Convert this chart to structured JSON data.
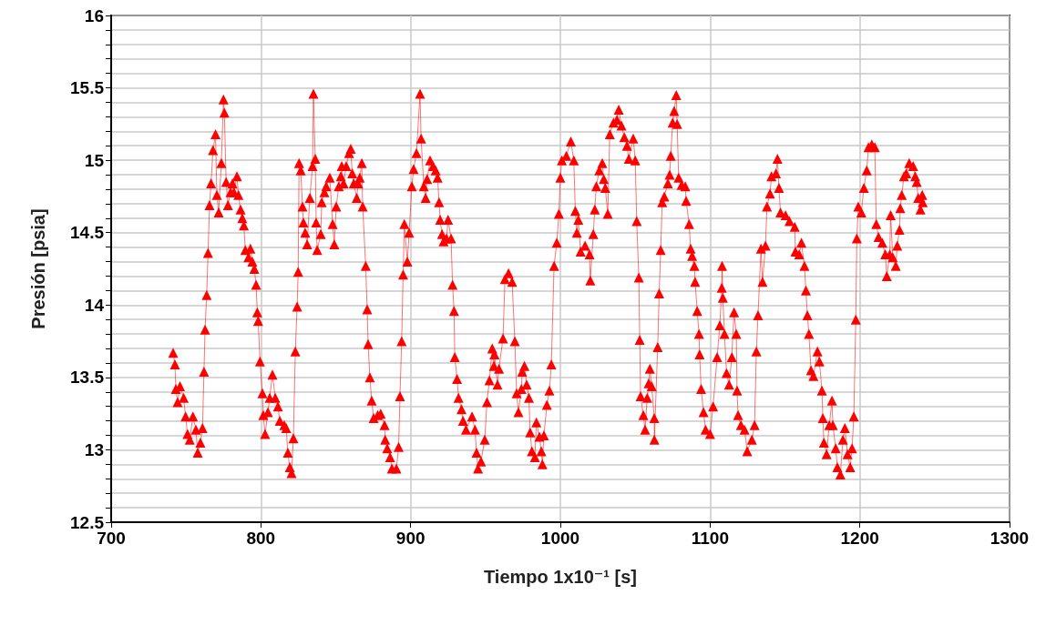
{
  "chart_data": {
    "type": "line",
    "xlabel": "Tiempo 1x10⁻¹ [s]",
    "ylabel": "Presión [psia]",
    "xlim": [
      700,
      1300
    ],
    "xticks": [
      700,
      800,
      900,
      1000,
      1100,
      1200,
      1300
    ],
    "ylim": [
      12.5,
      16
    ],
    "yticks": [
      12.5,
      {
        "value": 12.6,
        "label": null
      },
      {
        "value": 12.7,
        "label": null
      },
      {
        "value": 12.8,
        "label": null
      },
      {
        "value": 12.9,
        "label": null
      },
      13,
      {
        "value": 13.1,
        "label": null
      },
      {
        "value": 13.2,
        "label": null
      },
      {
        "value": 13.3,
        "label": null
      },
      {
        "value": 13.4,
        "label": null
      },
      13.5,
      {
        "value": 13.6,
        "label": null
      },
      {
        "value": 13.7,
        "label": null
      },
      {
        "value": 13.8,
        "label": null
      },
      {
        "value": 13.9,
        "label": null
      },
      14,
      {
        "value": 14.1,
        "label": null
      },
      {
        "value": 14.2,
        "label": null
      },
      {
        "value": 14.3,
        "label": null
      },
      {
        "value": 14.4,
        "label": null
      },
      14.5,
      {
        "value": 14.6,
        "label": null
      },
      {
        "value": 14.7,
        "label": null
      },
      {
        "value": 14.8,
        "label": null
      },
      {
        "value": 14.9,
        "label": null
      },
      15,
      {
        "value": 15.1,
        "label": null
      },
      {
        "value": 15.2,
        "label": null
      },
      {
        "value": 15.3,
        "label": null
      },
      {
        "value": 15.4,
        "label": null
      },
      15.5,
      {
        "value": 15.6,
        "label": null
      },
      {
        "value": 15.7,
        "label": null
      },
      {
        "value": 15.8,
        "label": null
      },
      {
        "value": 15.9,
        "label": null
      },
      16
    ],
    "grid": true,
    "marker": "triangle",
    "line_style": "solid",
    "series": [
      {
        "color": "#ff0000",
        "x": [
          741.4,
          742.6,
          743.2,
          744.4,
          746,
          748.4,
          749.7,
          751,
          752.5,
          754.6,
          756.6,
          757.8,
          759.6,
          761,
          762,
          762.7,
          763.8,
          764.7,
          765.7,
          766.7,
          768,
          769.7,
          770.6,
          771.8,
          773.6,
          775,
          775.6,
          776.8,
          778,
          779.7,
          781,
          782,
          784,
          785,
          786.4,
          787.6,
          788.6,
          789.6,
          791.7,
          793,
          794.3,
          795.6,
          796.8,
          797.6,
          798.2,
          799.4,
          801,
          801.6,
          802.8,
          804.7,
          805.9,
          807.7,
          809.6,
          811.4,
          812.6,
          815.6,
          816.9,
          818,
          819.3,
          820.5,
          821.7,
          823,
          824.2,
          824.9,
          825.5,
          826.6,
          827.8,
          828.4,
          829.6,
          830.9,
          832.7,
          834.5,
          835.1,
          836.3,
          836.9,
          837.6,
          840,
          840.6,
          842.4,
          843.6,
          846,
          847.9,
          849,
          850.3,
          852,
          853.4,
          854,
          855.2,
          857,
          858.9,
          860,
          861,
          862,
          864,
          865,
          866,
          867.4,
          868,
          870,
          871,
          871.6,
          872.8,
          874,
          875.3,
          878,
          880,
          882.6,
          883,
          884.4,
          886.3,
          887.5,
          890.5,
          892,
          892.9,
          894,
          895,
          895.8,
          897.8,
          899,
          900.8,
          902,
          903.9,
          906.3,
          907,
          908.8,
          910,
          911,
          913,
          915,
          916.7,
          918,
          919,
          919.7,
          921,
          922,
          924,
          925,
          927,
          928,
          929,
          929.5,
          931,
          932,
          934,
          935,
          937,
          941,
          943,
          944,
          945,
          947,
          949.5,
          951,
          952.6,
          954.5,
          955.6,
          956,
          958,
          959,
          961.7,
          963,
          965.4,
          967.8,
          969.6,
          970.8,
          972,
          974,
          974.5,
          976,
          977.5,
          979,
          979.8,
          981,
          983,
          984,
          986,
          987.3,
          988,
          989,
          991,
          992.7,
          994,
          995.8,
          997.6,
          999,
          1000,
          1001,
          1004,
          1007,
          1009,
          1010,
          1011,
          1012,
          1013.5,
          1016.5,
          1019.5,
          1020,
          1022,
          1023,
          1024,
          1026,
          1028,
          1029,
          1030,
          1031.7,
          1033,
          1035.5,
          1037.8,
          1039,
          1040.8,
          1042.7,
          1044.5,
          1045.7,
          1048.7,
          1050,
          1051,
          1052.4,
          1053,
          1053.6,
          1055.4,
          1056.6,
          1058,
          1059,
          1059.8,
          1061,
          1062.7,
          1062.8,
          1065,
          1066,
          1067,
          1068,
          1069.4,
          1071.8,
          1073,
          1073.7,
          1075,
          1076,
          1077.4,
          1078,
          1079,
          1081,
          1083.4,
          1084,
          1086,
          1087,
          1088,
          1089.5,
          1090,
          1091.4,
          1092.6,
          1093,
          1094,
          1095.6,
          1097,
          1100,
          1102,
          1104.7,
          1106.5,
          1107.8,
          1108,
          1108.5,
          1109.6,
          1111,
          1112.7,
          1114.5,
          1116,
          1117.5,
          1118,
          1118.7,
          1120.6,
          1123,
          1124.8,
          1127.9,
          1129.7,
          1130.9,
          1132,
          1134,
          1135,
          1137,
          1138,
          1140,
          1141,
          1144,
          1145,
          1146,
          1147,
          1150.4,
          1153,
          1156.5,
          1157,
          1159.5,
          1161,
          1163,
          1164,
          1165,
          1166,
          1167.4,
          1169,
          1171.7,
          1173,
          1174.7,
          1175.3,
          1176,
          1177.8,
          1179.6,
          1181.4,
          1182,
          1183.9,
          1185,
          1187,
          1188.7,
          1190,
          1191.8,
          1193.6,
          1194.8,
          1196,
          1197.3,
          1198,
          1199,
          1201,
          1202.7,
          1204.6,
          1205.8,
          1208,
          1210,
          1211,
          1212.5,
          1215,
          1217,
          1218,
          1220,
          1220.6,
          1222,
          1224,
          1225,
          1226.5,
          1227,
          1228,
          1229.5,
          1231,
          1233,
          1235.6,
          1237,
          1238,
          1239,
          1240.5,
          1241.7,
          1242
        ],
        "values": [
          13.67,
          13.59,
          13.42,
          13.33,
          13.44,
          13.36,
          13.23,
          13.11,
          13.07,
          13.23,
          13.14,
          12.98,
          13.05,
          13.15,
          13.54,
          13.83,
          14.07,
          14.36,
          14.69,
          14.84,
          15.07,
          15.18,
          14.76,
          14.64,
          14.98,
          15.42,
          15.33,
          14.85,
          14.69,
          14.78,
          14.84,
          14.78,
          14.89,
          14.76,
          14.66,
          14.6,
          14.55,
          14.38,
          14.33,
          14.39,
          14.3,
          14.25,
          14.14,
          13.95,
          13.89,
          13.61,
          13.39,
          13.24,
          13.11,
          13.26,
          13.36,
          13.52,
          13.36,
          13.3,
          13.2,
          13.17,
          13.15,
          12.98,
          12.88,
          12.84,
          13.08,
          13.68,
          13.99,
          14.23,
          14.98,
          14.93,
          14.68,
          14.57,
          14.5,
          14.42,
          14.74,
          14.96,
          15.46,
          15.01,
          14.57,
          14.38,
          14.49,
          14.71,
          14.78,
          14.82,
          14.88,
          14.56,
          14.42,
          14.68,
          14.82,
          14.89,
          14.96,
          14.84,
          14.96,
          15.05,
          15.08,
          14.91,
          14.84,
          14.74,
          14.84,
          14.88,
          14.98,
          14.68,
          14.27,
          13.97,
          13.73,
          13.5,
          13.34,
          13.22,
          13.24,
          13.25,
          13.17,
          13.07,
          13.01,
          12.95,
          12.87,
          12.87,
          13.02,
          13.37,
          13.75,
          14.21,
          14.56,
          14.3,
          14.5,
          14.82,
          14.94,
          15.05,
          15.46,
          15.15,
          14.82,
          14.74,
          14.87,
          15,
          14.96,
          14.93,
          14.88,
          14.71,
          14.59,
          14.49,
          14.44,
          14.46,
          14.59,
          14.46,
          14.14,
          13.96,
          13.64,
          13.49,
          13.36,
          13.28,
          13.2,
          13.14,
          13.23,
          13.14,
          12.98,
          12.87,
          12.92,
          13.07,
          13.33,
          13.48,
          13.7,
          13.58,
          13.66,
          13.45,
          13.56,
          13.77,
          14.18,
          14.22,
          14.16,
          13.75,
          13.39,
          13.26,
          13.42,
          13.54,
          13.58,
          13.45,
          13.36,
          13.12,
          12.99,
          12.95,
          13.19,
          13.09,
          12.99,
          12.9,
          13.1,
          13.31,
          13.41,
          13.59,
          14.27,
          14.43,
          14.63,
          14.88,
          15,
          15.03,
          15.13,
          15,
          14.65,
          14.5,
          14.59,
          14.37,
          14.41,
          14.35,
          14.17,
          14.49,
          14.66,
          14.82,
          14.93,
          14.98,
          14.87,
          14.81,
          14.63,
          15.18,
          15.26,
          15.28,
          15.35,
          15.24,
          15.16,
          15.1,
          15.01,
          15.15,
          15,
          14.58,
          14.19,
          13.76,
          13.37,
          13.24,
          13.14,
          13.36,
          13.46,
          13.56,
          13.44,
          13.22,
          13.07,
          13.71,
          14.08,
          14.38,
          14.71,
          14.75,
          14.84,
          14.9,
          15.03,
          15.26,
          15.34,
          15.45,
          15.25,
          14.88,
          14.83,
          14.82,
          14.72,
          14.56,
          14.39,
          14.34,
          14.27,
          14.16,
          13.96,
          13.8,
          13.66,
          13.42,
          13.26,
          13.14,
          13.11,
          13.3,
          13.64,
          13.86,
          14.12,
          14.27,
          14.05,
          13.8,
          13.53,
          13.45,
          13.64,
          13.95,
          13.8,
          13.41,
          13.24,
          13.17,
          13.14,
          12.99,
          13.07,
          13.17,
          13.68,
          13.93,
          14.39,
          14.16,
          14.41,
          14.68,
          14.77,
          14.89,
          14.91,
          15.01,
          14.81,
          14.64,
          14.62,
          14.58,
          14.54,
          14.37,
          14.35,
          14.43,
          14.27,
          14.1,
          13.93,
          13.8,
          13.55,
          13.51,
          13.68,
          13.61,
          13.41,
          13.22,
          13.05,
          12.97,
          13.17,
          13.34,
          13.17,
          13.01,
          12.88,
          12.83,
          13.07,
          13.15,
          12.97,
          12.88,
          13.01,
          13.23,
          13.9,
          14.46,
          14.68,
          14.64,
          14.81,
          14.93,
          15.09,
          15.11,
          15.09,
          14.56,
          14.47,
          14.43,
          14.35,
          14.2,
          14.35,
          14.62,
          14.33,
          14.27,
          14.41,
          14.52,
          14.67,
          14.76,
          14.89,
          14.91,
          14.98,
          14.96,
          14.89,
          14.85,
          14.74,
          14.66,
          14.76,
          14.71
        ]
      }
    ]
  }
}
